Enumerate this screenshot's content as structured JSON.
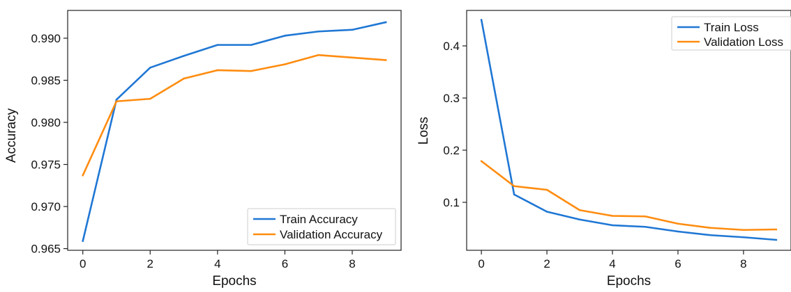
{
  "chart_data": [
    {
      "type": "line",
      "title": "",
      "xlabel": "Epochs",
      "ylabel": "Accuracy",
      "x": [
        0,
        1,
        2,
        3,
        4,
        5,
        6,
        7,
        8,
        9
      ],
      "xticks": [
        0,
        2,
        4,
        6,
        8
      ],
      "xtick_labels": [
        "0",
        "2",
        "4",
        "6",
        "8"
      ],
      "xlim": [
        -0.45,
        9.45
      ],
      "yticks": [
        0.965,
        0.97,
        0.975,
        0.98,
        0.985,
        0.99
      ],
      "ytick_labels": [
        "0.965",
        "0.970",
        "0.975",
        "0.980",
        "0.985",
        "0.990"
      ],
      "ylim": [
        0.9648,
        0.9933
      ],
      "grid": false,
      "legend_position": "bottom-right",
      "series": [
        {
          "name": "Train Accuracy",
          "color": "#1f77d4",
          "values": [
            0.9659,
            0.9827,
            0.9865,
            0.9879,
            0.9892,
            0.9892,
            0.9903,
            0.9908,
            0.991,
            0.9919
          ]
        },
        {
          "name": "Validation Accuracy",
          "color": "#ff8c0f",
          "values": [
            0.9737,
            0.9825,
            0.9828,
            0.9852,
            0.9862,
            0.9861,
            0.9869,
            0.988,
            0.9877,
            0.9874
          ]
        }
      ]
    },
    {
      "type": "line",
      "title": "",
      "xlabel": "Epochs",
      "ylabel": "Loss",
      "x": [
        0,
        1,
        2,
        3,
        4,
        5,
        6,
        7,
        8,
        9
      ],
      "xticks": [
        0,
        2,
        4,
        6,
        8
      ],
      "xtick_labels": [
        "0",
        "2",
        "4",
        "6",
        "8"
      ],
      "xlim": [
        -0.45,
        9.45
      ],
      "yticks": [
        0.1,
        0.2,
        0.3,
        0.4
      ],
      "ytick_labels": [
        "0.1",
        "0.2",
        "0.3",
        "0.4"
      ],
      "ylim": [
        0.008,
        0.468
      ],
      "grid": false,
      "legend_position": "top-right",
      "series": [
        {
          "name": "Train Loss",
          "color": "#1f77d4",
          "values": [
            0.45,
            0.115,
            0.082,
            0.067,
            0.056,
            0.053,
            0.044,
            0.037,
            0.033,
            0.028
          ]
        },
        {
          "name": "Validation Loss",
          "color": "#ff8c0f",
          "values": [
            0.179,
            0.131,
            0.124,
            0.085,
            0.074,
            0.073,
            0.059,
            0.051,
            0.047,
            0.048
          ]
        }
      ]
    }
  ]
}
